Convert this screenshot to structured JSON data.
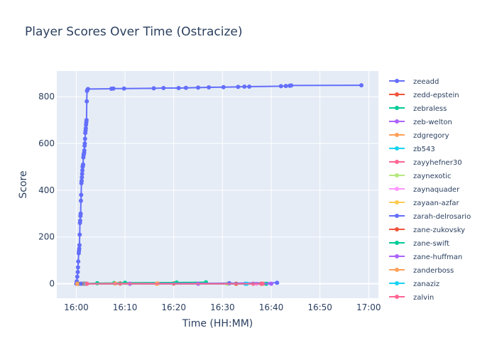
{
  "chart_data": {
    "type": "line",
    "title": "Player Scores Over Time (Ostracize)",
    "xlabel": "Time (HH:MM)",
    "ylabel": "Score",
    "x_unit": "minutes past 16:00",
    "xlim": [
      -4,
      62
    ],
    "ylim": [
      -62,
      910
    ],
    "xticks": [
      {
        "label": "16:00",
        "value": 0
      },
      {
        "label": "16:10",
        "value": 10
      },
      {
        "label": "16:20",
        "value": 20
      },
      {
        "label": "16:30",
        "value": 30
      },
      {
        "label": "16:40",
        "value": 40
      },
      {
        "label": "16:50",
        "value": 50
      },
      {
        "label": "17:00",
        "value": 60
      }
    ],
    "yticks": [
      0,
      200,
      400,
      600,
      800
    ],
    "grid": true,
    "legend_position": "right",
    "series": [
      {
        "name": "zeeadd",
        "color": "#636efa",
        "points": [
          [
            0.0,
            0
          ],
          [
            0.1,
            10
          ],
          [
            0.2,
            30
          ],
          [
            0.3,
            50
          ],
          [
            0.35,
            70
          ],
          [
            0.4,
            95
          ],
          [
            0.5,
            130
          ],
          [
            0.55,
            140
          ],
          [
            0.6,
            150
          ],
          [
            0.65,
            165
          ],
          [
            0.7,
            210
          ],
          [
            0.75,
            260
          ],
          [
            0.8,
            270
          ],
          [
            0.85,
            290
          ],
          [
            0.9,
            300
          ],
          [
            0.95,
            355
          ],
          [
            1.0,
            380
          ],
          [
            1.05,
            430
          ],
          [
            1.1,
            440
          ],
          [
            1.15,
            455
          ],
          [
            1.2,
            470
          ],
          [
            1.25,
            485
          ],
          [
            1.3,
            500
          ],
          [
            1.35,
            505
          ],
          [
            1.4,
            510
          ],
          [
            1.45,
            540
          ],
          [
            1.5,
            550
          ],
          [
            1.55,
            555
          ],
          [
            1.6,
            560
          ],
          [
            1.65,
            570
          ],
          [
            1.7,
            590
          ],
          [
            1.75,
            600
          ],
          [
            1.8,
            620
          ],
          [
            1.85,
            645
          ],
          [
            1.9,
            655
          ],
          [
            1.95,
            665
          ],
          [
            2.0,
            680
          ],
          [
            2.05,
            690
          ],
          [
            2.1,
            700
          ],
          [
            2.15,
            780
          ],
          [
            2.2,
            825
          ],
          [
            2.3,
            830
          ],
          [
            2.4,
            833
          ],
          [
            7.2,
            834
          ],
          [
            7.6,
            835
          ],
          [
            9.8,
            835
          ],
          [
            15.9,
            836
          ],
          [
            17.9,
            837
          ],
          [
            21.0,
            837
          ],
          [
            22.5,
            838
          ],
          [
            25.0,
            839
          ],
          [
            27.2,
            840
          ],
          [
            30.2,
            841
          ],
          [
            33.2,
            842
          ],
          [
            34.5,
            843
          ],
          [
            35.5,
            843
          ],
          [
            42.0,
            845
          ],
          [
            43.0,
            846
          ],
          [
            43.8,
            847
          ],
          [
            44.1,
            848
          ],
          [
            58.5,
            849
          ]
        ]
      },
      {
        "name": "zedd-epstein",
        "color": "#ef553b",
        "points": [
          [
            0.5,
            0
          ],
          [
            9.0,
            1
          ],
          [
            20.0,
            1
          ],
          [
            32.8,
            0
          ]
        ]
      },
      {
        "name": "zebraless",
        "color": "#00cc96",
        "points": [
          [
            0.3,
            0
          ],
          [
            1.5,
            1
          ],
          [
            4.3,
            2
          ],
          [
            7.8,
            3
          ],
          [
            10.0,
            4
          ],
          [
            20.6,
            5
          ],
          [
            26.6,
            6
          ]
        ]
      },
      {
        "name": "zeb-welton",
        "color": "#ab63fa",
        "points": [
          [
            1.0,
            0
          ],
          [
            11.0,
            0
          ],
          [
            25.0,
            0
          ]
        ]
      },
      {
        "name": "zdgregory",
        "color": "#ffa15a",
        "points": [
          [
            0.2,
            0
          ],
          [
            8.0,
            1
          ],
          [
            16.7,
            1
          ]
        ]
      },
      {
        "name": "zb543",
        "color": "#19d3f3",
        "points": [
          [
            1.2,
            0
          ],
          [
            34.7,
            0
          ]
        ]
      },
      {
        "name": "zayyhefner30",
        "color": "#ff6692",
        "points": [
          [
            1.3,
            0
          ],
          [
            36.3,
            0
          ]
        ]
      },
      {
        "name": "zaynexotic",
        "color": "#b6e880",
        "points": [
          [
            1.4,
            0
          ],
          [
            31.0,
            0
          ],
          [
            38.5,
            0
          ]
        ]
      },
      {
        "name": "zaynaquader",
        "color": "#ff97ff",
        "points": [
          [
            1.5,
            0
          ],
          [
            37.0,
            0
          ],
          [
            38.0,
            0
          ]
        ]
      },
      {
        "name": "zayaan-azfar",
        "color": "#fecb52",
        "points": [
          [
            1.6,
            0
          ],
          [
            38.3,
            0
          ]
        ]
      },
      {
        "name": "zarah-delrosario",
        "color": "#636efa",
        "points": [
          [
            1.0,
            0
          ],
          [
            31.4,
            2
          ],
          [
            41.2,
            4
          ]
        ]
      },
      {
        "name": "zane-zukovsky",
        "color": "#ef553b",
        "points": [
          [
            1.7,
            0
          ],
          [
            38.0,
            0
          ]
        ]
      },
      {
        "name": "zane-swift",
        "color": "#00cc96",
        "points": [
          [
            1.8,
            0
          ],
          [
            39.0,
            0
          ]
        ]
      },
      {
        "name": "zane-huffman",
        "color": "#ab63fa",
        "points": [
          [
            1.9,
            0
          ],
          [
            40.0,
            0
          ]
        ]
      },
      {
        "name": "zanderboss",
        "color": "#ffa15a",
        "points": [
          [
            2.0,
            0
          ],
          [
            16.5,
            0
          ]
        ]
      },
      {
        "name": "zanaziz",
        "color": "#19d3f3",
        "points": [
          [
            2.1,
            0
          ],
          [
            35.0,
            0
          ]
        ]
      },
      {
        "name": "zalvin",
        "color": "#ff6692",
        "points": [
          [
            2.2,
            0
          ],
          [
            38.2,
            0
          ]
        ]
      }
    ]
  }
}
